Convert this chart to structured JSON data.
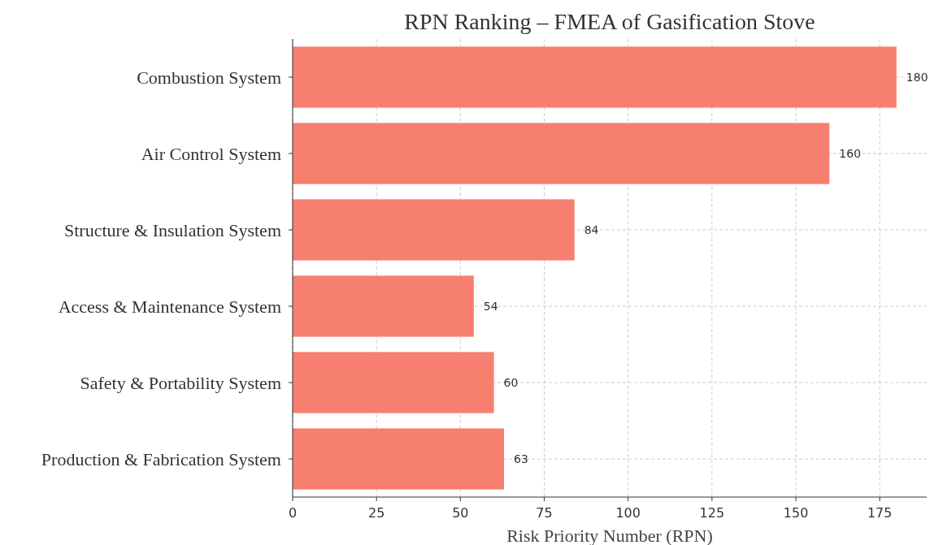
{
  "chart_data": {
    "type": "bar",
    "orientation": "horizontal",
    "title": "RPN Ranking – FMEA of Gasification Stove",
    "xlabel": "Risk Priority Number (RPN)",
    "categories": [
      "Combustion System",
      "Air Control System",
      "Structure & Insulation System",
      "Access & Maintenance System",
      "Safety & Portability System ",
      "Production & Fabrication System"
    ],
    "values": [
      180,
      160,
      84,
      54,
      60,
      63
    ],
    "color": "#f77f6f",
    "xlim": [
      0,
      189
    ],
    "xticks": [
      0,
      25,
      50,
      75,
      100,
      125,
      150,
      175
    ],
    "grid": true,
    "data_labels": true
  }
}
